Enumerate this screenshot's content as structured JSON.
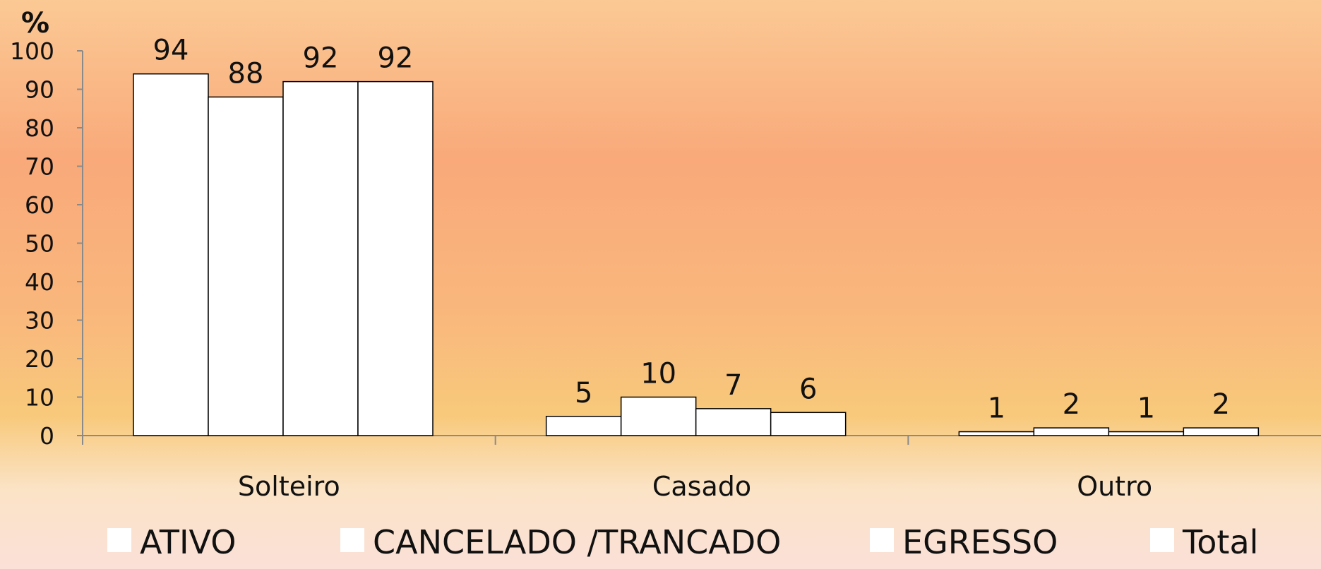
{
  "chart_data": {
    "type": "bar",
    "ylabel": "%",
    "ylim": [
      0,
      100
    ],
    "yticks": [
      "0",
      "10",
      "20",
      "30",
      "40",
      "50",
      "60",
      "70",
      "80",
      "90",
      "100"
    ],
    "categories": [
      "Solteiro",
      "Casado",
      "Outro"
    ],
    "series": [
      {
        "name": "ATIVO",
        "values": [
          94,
          5,
          1
        ],
        "labels": [
          "94",
          "5",
          "1"
        ]
      },
      {
        "name": "CANCELADO /TRANCADO",
        "values": [
          88,
          10,
          2
        ],
        "labels": [
          "88",
          "10",
          "2"
        ]
      },
      {
        "name": "EGRESSO",
        "values": [
          92,
          7,
          1
        ],
        "labels": [
          "92",
          "7",
          "1"
        ]
      },
      {
        "name": "Total",
        "values": [
          92,
          6,
          2
        ],
        "labels": [
          "92",
          "6",
          "2"
        ]
      }
    ],
    "bar_color": "#ffffff",
    "axis_color": "#8a8a8a",
    "legend_position": "bottom",
    "grid": false
  }
}
